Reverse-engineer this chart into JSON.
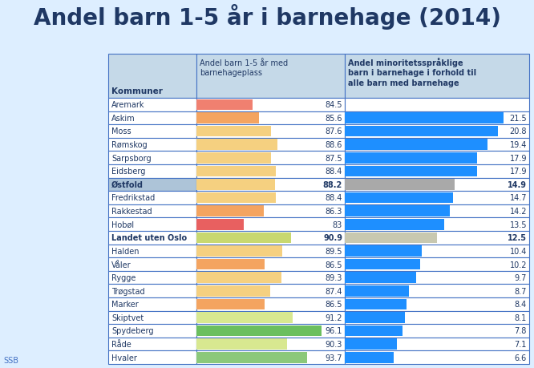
{
  "title": "Andel barn 1-5 år i barnehage (2014)",
  "rows": [
    {
      "kommune": "Aremark",
      "col2_val": 84.5,
      "col3_val": null,
      "col2_color": "#F08070",
      "col3_color": null,
      "name_bg": "#FFFFFF",
      "bold": false
    },
    {
      "kommune": "Askim",
      "col2_val": 85.6,
      "col3_val": 21.5,
      "col2_color": "#F4A460",
      "col3_color": "#1E8FFF",
      "name_bg": "#FFFFFF",
      "bold": false
    },
    {
      "kommune": "Moss",
      "col2_val": 87.6,
      "col3_val": 20.8,
      "col2_color": "#F5D080",
      "col3_color": "#1E8FFF",
      "name_bg": "#FFFFFF",
      "bold": false
    },
    {
      "kommune": "Rømskog",
      "col2_val": 88.6,
      "col3_val": 19.4,
      "col2_color": "#F5D080",
      "col3_color": "#1E8FFF",
      "name_bg": "#FFFFFF",
      "bold": false
    },
    {
      "kommune": "Sarpsborg",
      "col2_val": 87.5,
      "col3_val": 17.9,
      "col2_color": "#F5D080",
      "col3_color": "#1E8FFF",
      "name_bg": "#FFFFFF",
      "bold": false
    },
    {
      "kommune": "Eidsberg",
      "col2_val": 88.4,
      "col3_val": 17.9,
      "col2_color": "#F5D080",
      "col3_color": "#1E8FFF",
      "name_bg": "#FFFFFF",
      "bold": false
    },
    {
      "kommune": "Østfold",
      "col2_val": 88.2,
      "col3_val": 14.9,
      "col2_color": "#F5D080",
      "col3_color": "#A9A9A9",
      "name_bg": "#ADC4D8",
      "bold": true
    },
    {
      "kommune": "Fredrikstad",
      "col2_val": 88.4,
      "col3_val": 14.7,
      "col2_color": "#F5D080",
      "col3_color": "#1E8FFF",
      "name_bg": "#FFFFFF",
      "bold": false
    },
    {
      "kommune": "Rakkestad",
      "col2_val": 86.3,
      "col3_val": 14.2,
      "col2_color": "#F4A460",
      "col3_color": "#1E8FFF",
      "name_bg": "#FFFFFF",
      "bold": false
    },
    {
      "kommune": "Hobøl",
      "col2_val": 83.0,
      "col3_val": 13.5,
      "col2_color": "#E86060",
      "col3_color": "#1E8FFF",
      "name_bg": "#FFFFFF",
      "bold": false
    },
    {
      "kommune": "Landet uten Oslo",
      "col2_val": 90.9,
      "col3_val": 12.5,
      "col2_color": "#C8D870",
      "col3_color": "#C8C8B0",
      "name_bg": "#FFFFFF",
      "bold": true
    },
    {
      "kommune": "Halden",
      "col2_val": 89.5,
      "col3_val": 10.4,
      "col2_color": "#F5D080",
      "col3_color": "#1E8FFF",
      "name_bg": "#FFFFFF",
      "bold": false
    },
    {
      "kommune": "Våler",
      "col2_val": 86.5,
      "col3_val": 10.2,
      "col2_color": "#F4A460",
      "col3_color": "#1E8FFF",
      "name_bg": "#FFFFFF",
      "bold": false
    },
    {
      "kommune": "Rygge",
      "col2_val": 89.3,
      "col3_val": 9.7,
      "col2_color": "#F5D080",
      "col3_color": "#1E8FFF",
      "name_bg": "#FFFFFF",
      "bold": false
    },
    {
      "kommune": "Trøgstad",
      "col2_val": 87.4,
      "col3_val": 8.7,
      "col2_color": "#F5D080",
      "col3_color": "#1E8FFF",
      "name_bg": "#FFFFFF",
      "bold": false
    },
    {
      "kommune": "Marker",
      "col2_val": 86.5,
      "col3_val": 8.4,
      "col2_color": "#F4A460",
      "col3_color": "#1E8FFF",
      "name_bg": "#FFFFFF",
      "bold": false
    },
    {
      "kommune": "Skiptvet",
      "col2_val": 91.2,
      "col3_val": 8.1,
      "col2_color": "#D8E890",
      "col3_color": "#1E8FFF",
      "name_bg": "#FFFFFF",
      "bold": false
    },
    {
      "kommune": "Spydeberg",
      "col2_val": 96.1,
      "col3_val": 7.8,
      "col2_color": "#6BBF5E",
      "col3_color": "#1E8FFF",
      "name_bg": "#FFFFFF",
      "bold": false
    },
    {
      "kommune": "Råde",
      "col2_val": 90.3,
      "col3_val": 7.1,
      "col2_color": "#D8E890",
      "col3_color": "#1E8FFF",
      "name_bg": "#FFFFFF",
      "bold": false
    },
    {
      "kommune": "Hvaler",
      "col2_val": 93.7,
      "col3_val": 6.6,
      "col2_color": "#8BC87A",
      "col3_color": "#1E8FFF",
      "name_bg": "#FFFFFF",
      "bold": false
    }
  ],
  "col2_min": 75,
  "col2_max": 100,
  "col3_max": 25,
  "header_bg": "#C5D9E8",
  "row_alt_bg": "#EEF4FA",
  "table_border": "#4472C4",
  "fig_bg": "#DDEEFF",
  "ssb_label": "SSB"
}
